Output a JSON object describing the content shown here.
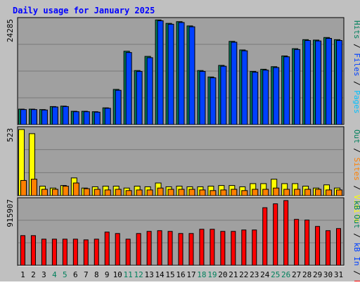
{
  "title": "Daily usage for January 2025",
  "colors": {
    "background": "#C0C0C0",
    "panel": "#A0A0A0",
    "title_text": "#0000FF",
    "hits": "#00805C",
    "files": "#0040FF",
    "pages": "#00C0FF",
    "visits": "#FFFF00",
    "sites": "#FF8000",
    "kb_out": "#00805C",
    "kb_in": "#0040FF",
    "kb_f": "#FF0000",
    "weekend_label": "#00805C"
  },
  "chart_data": {
    "type": "bar",
    "title": "Daily usage for January 2025",
    "categories": [
      "1",
      "2",
      "3",
      "4",
      "5",
      "6",
      "7",
      "8",
      "9",
      "10",
      "11",
      "12",
      "13",
      "14",
      "15",
      "16",
      "17",
      "18",
      "19",
      "20",
      "21",
      "22",
      "23",
      "24",
      "25",
      "26",
      "27",
      "28",
      "29",
      "30",
      "31"
    ],
    "weekend_days": [
      4,
      5,
      11,
      12,
      18,
      19,
      25,
      26
    ],
    "panels": [
      {
        "name": "top",
        "max_label": "24285",
        "ymax": 24285,
        "legend": [
          "Pages",
          "Files",
          "Hits"
        ],
        "series": [
          {
            "name": "Hits",
            "values": [
              3600,
              3600,
              3500,
              4200,
              4300,
              3100,
              3100,
              3000,
              3900,
              8200,
              17100,
              12600,
              15900,
              24400,
              23600,
              24000,
              23000,
              12600,
              11100,
              13800,
              19400,
              17400,
              12400,
              12900,
              13500,
              16000,
              17700,
              19800,
              19700,
              20300,
              19800
            ]
          },
          {
            "name": "Files",
            "values": [
              3500,
              3500,
              3400,
              4100,
              4200,
              3000,
              3000,
              2900,
              3800,
              8000,
              16800,
              12400,
              15600,
              24200,
              23400,
              23800,
              22800,
              12400,
              10900,
              13600,
              19200,
              17200,
              12200,
              12700,
              13300,
              15800,
              17500,
              19600,
              19500,
              20100,
              19600
            ]
          }
        ]
      },
      {
        "name": "middle",
        "max_label": "523",
        "ymax": 523,
        "legend": [
          "Visits",
          "Sites",
          "Out"
        ],
        "series": [
          {
            "name": "Visits",
            "values": [
              523,
              490,
              75,
              60,
              80,
              140,
              60,
              70,
              75,
              75,
              60,
              75,
              70,
              100,
              70,
              75,
              70,
              70,
              75,
              80,
              80,
              70,
              95,
              95,
              130,
              95,
              95,
              75,
              60,
              85,
              60
            ]
          },
          {
            "name": "Sites",
            "values": [
              120,
              130,
              50,
              50,
              75,
              100,
              55,
              50,
              45,
              50,
              40,
              45,
              45,
              60,
              50,
              50,
              50,
              45,
              40,
              45,
              50,
              40,
              50,
              50,
              60,
              50,
              50,
              50,
              50,
              45,
              45
            ]
          }
        ]
      },
      {
        "name": "bottom",
        "max_label": "915907",
        "ymax": 915907,
        "legend": [
          "kB F",
          "kB In",
          "kB Out"
        ],
        "series": [
          {
            "name": "kB F",
            "values": [
              420000,
              420000,
              370000,
              370000,
              370000,
              370000,
              360000,
              370000,
              470000,
              450000,
              370000,
              450000,
              480000,
              490000,
              480000,
              450000,
              450000,
              510000,
              510000,
              480000,
              480000,
              500000,
              500000,
              815000,
              870000,
              915907,
              650000,
              640000,
              550000,
              490000,
              520000
            ]
          }
        ]
      }
    ]
  }
}
